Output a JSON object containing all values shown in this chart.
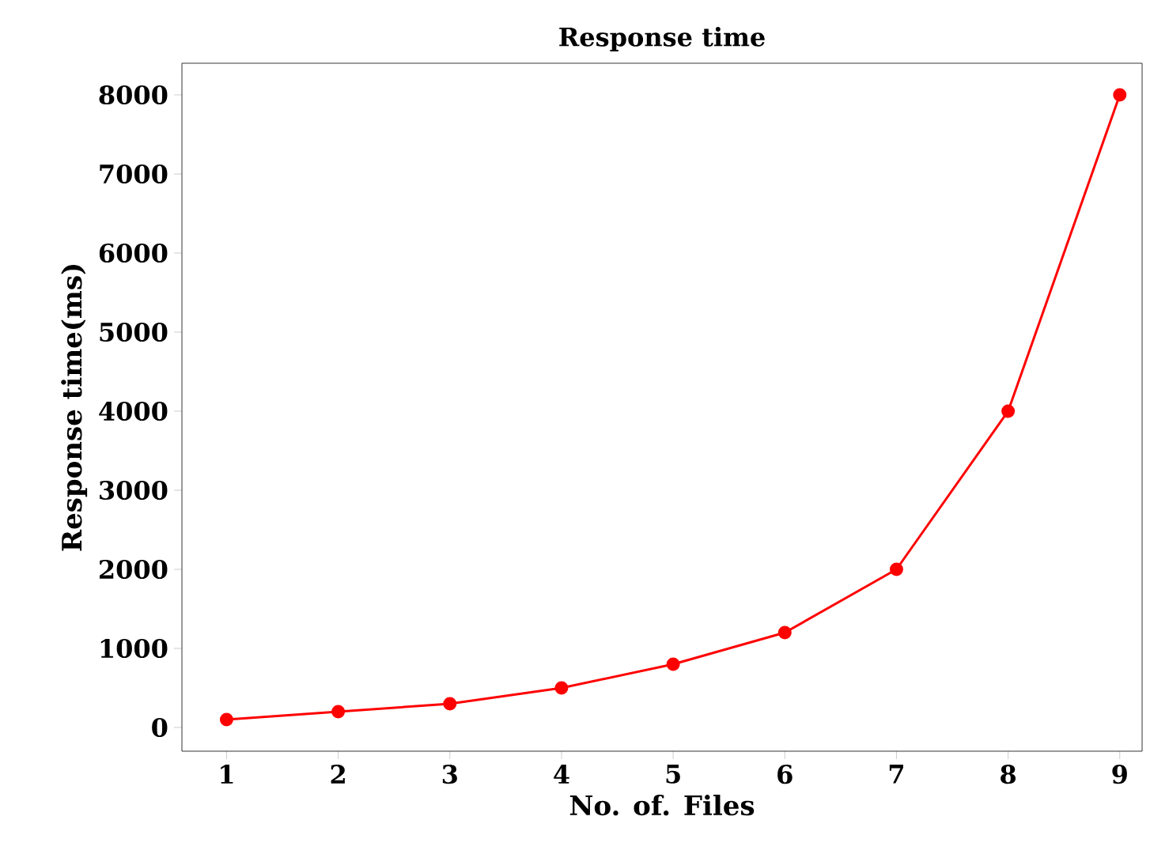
{
  "chart_data": {
    "type": "line",
    "title": "Response time",
    "xlabel": "No. of. Files",
    "ylabel": "Response time(ms)",
    "x": [
      1,
      2,
      3,
      4,
      5,
      6,
      7,
      8,
      9
    ],
    "series": [
      {
        "color": "#ff0000",
        "values": [
          100,
          200,
          300,
          500,
          800,
          1200,
          2000,
          4000,
          8000
        ]
      }
    ],
    "xlim": [
      0.6,
      9.2
    ],
    "ylim": [
      -300,
      8400
    ],
    "xticks": [
      1,
      2,
      3,
      4,
      5,
      6,
      7,
      8,
      9
    ],
    "yticks": [
      0,
      1000,
      2000,
      3000,
      4000,
      5000,
      6000,
      7000,
      8000
    ],
    "grid": false,
    "marker": "circle",
    "line_style": "solid"
  }
}
